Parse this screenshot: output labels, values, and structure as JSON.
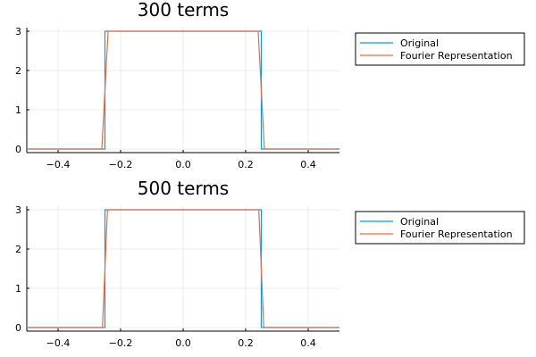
{
  "colors": {
    "original": "#009af9",
    "fourier": "#e26f46",
    "grid": "#e6e6e6",
    "axis": "#000000",
    "background": "#ffffff"
  },
  "chart_data": [
    {
      "type": "line",
      "title": "300 terms",
      "xlabel": "",
      "ylabel": "",
      "xlim": [
        -0.5,
        0.5
      ],
      "ylim": [
        0,
        3
      ],
      "xticks": [
        -0.4,
        -0.2,
        0.0,
        0.2,
        0.4
      ],
      "xtick_labels": [
        "−0.4",
        "−0.2",
        "0.0",
        "0.2",
        "0.4"
      ],
      "yticks": [
        0,
        1,
        2,
        3
      ],
      "ytick_labels": [
        "0",
        "1",
        "2",
        "3"
      ],
      "grid": true,
      "legend": "top-right outside",
      "series": [
        {
          "name": "Original",
          "x": [
            -0.5,
            -0.25,
            -0.25,
            0.25,
            0.25,
            0.5
          ],
          "y": [
            0,
            0,
            3,
            3,
            0,
            0
          ]
        },
        {
          "name": "Fourier Representation",
          "x": [
            -0.5,
            -0.26,
            -0.25,
            -0.24,
            0.24,
            0.25,
            0.26,
            0.5
          ],
          "y": [
            0,
            0,
            1.5,
            3,
            3,
            1.5,
            0,
            0
          ]
        }
      ]
    },
    {
      "type": "line",
      "title": "500 terms",
      "xlabel": "",
      "ylabel": "",
      "xlim": [
        -0.5,
        0.5
      ],
      "ylim": [
        0,
        3
      ],
      "xticks": [
        -0.4,
        -0.2,
        0.0,
        0.2,
        0.4
      ],
      "xtick_labels": [
        "−0.4",
        "−0.2",
        "0.0",
        "0.2",
        "0.4"
      ],
      "yticks": [
        0,
        1,
        2,
        3
      ],
      "ytick_labels": [
        "0",
        "1",
        "2",
        "3"
      ],
      "grid": true,
      "legend": "top-right outside",
      "series": [
        {
          "name": "Original",
          "x": [
            -0.5,
            -0.25,
            -0.25,
            0.25,
            0.25,
            0.5
          ],
          "y": [
            0,
            0,
            3,
            3,
            0,
            0
          ]
        },
        {
          "name": "Fourier Representation",
          "x": [
            -0.5,
            -0.258,
            -0.25,
            -0.242,
            0.242,
            0.25,
            0.258,
            0.5
          ],
          "y": [
            0,
            0,
            1.5,
            3,
            3,
            1.5,
            0,
            0
          ]
        }
      ]
    }
  ]
}
